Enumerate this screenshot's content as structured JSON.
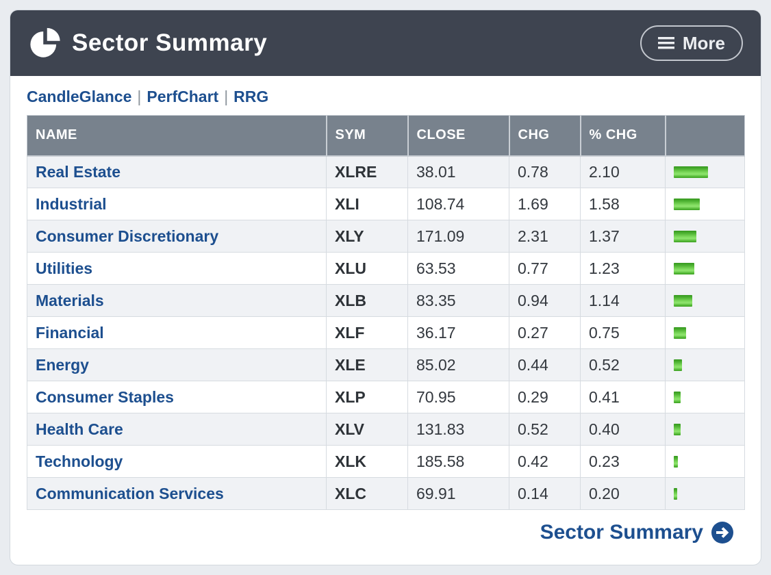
{
  "header": {
    "title": "Sector Summary",
    "more_label": "More"
  },
  "quicklinks": [
    {
      "label": "CandleGlance"
    },
    {
      "label": "PerfChart"
    },
    {
      "label": "RRG"
    }
  ],
  "quicklinks_separator": "|",
  "table": {
    "columns": [
      "NAME",
      "SYM",
      "CLOSE",
      "CHG",
      "% CHG",
      ""
    ],
    "rows": [
      {
        "name": "Real Estate",
        "sym": "XLRE",
        "close": "38.01",
        "chg": "0.78",
        "pct_chg": "2.10"
      },
      {
        "name": "Industrial",
        "sym": "XLI",
        "close": "108.74",
        "chg": "1.69",
        "pct_chg": "1.58"
      },
      {
        "name": "Consumer Discretionary",
        "sym": "XLY",
        "close": "171.09",
        "chg": "2.31",
        "pct_chg": "1.37"
      },
      {
        "name": "Utilities",
        "sym": "XLU",
        "close": "63.53",
        "chg": "0.77",
        "pct_chg": "1.23"
      },
      {
        "name": "Materials",
        "sym": "XLB",
        "close": "83.35",
        "chg": "0.94",
        "pct_chg": "1.14"
      },
      {
        "name": "Financial",
        "sym": "XLF",
        "close": "36.17",
        "chg": "0.27",
        "pct_chg": "0.75"
      },
      {
        "name": "Energy",
        "sym": "XLE",
        "close": "85.02",
        "chg": "0.44",
        "pct_chg": "0.52"
      },
      {
        "name": "Consumer Staples",
        "sym": "XLP",
        "close": "70.95",
        "chg": "0.29",
        "pct_chg": "0.41"
      },
      {
        "name": "Health Care",
        "sym": "XLV",
        "close": "131.83",
        "chg": "0.52",
        "pct_chg": "0.40"
      },
      {
        "name": "Technology",
        "sym": "XLK",
        "close": "185.58",
        "chg": "0.42",
        "pct_chg": "0.23"
      },
      {
        "name": "Communication Services",
        "sym": "XLC",
        "close": "69.91",
        "chg": "0.14",
        "pct_chg": "0.20"
      }
    ]
  },
  "footer": {
    "link_label": "Sector Summary"
  },
  "colors": {
    "header_background": "#3e4450",
    "table_header_background": "#78828d",
    "link_blue": "#1d4f8f",
    "bar_green": "#5cc13b",
    "row_alt_background": "#f0f2f5"
  }
}
